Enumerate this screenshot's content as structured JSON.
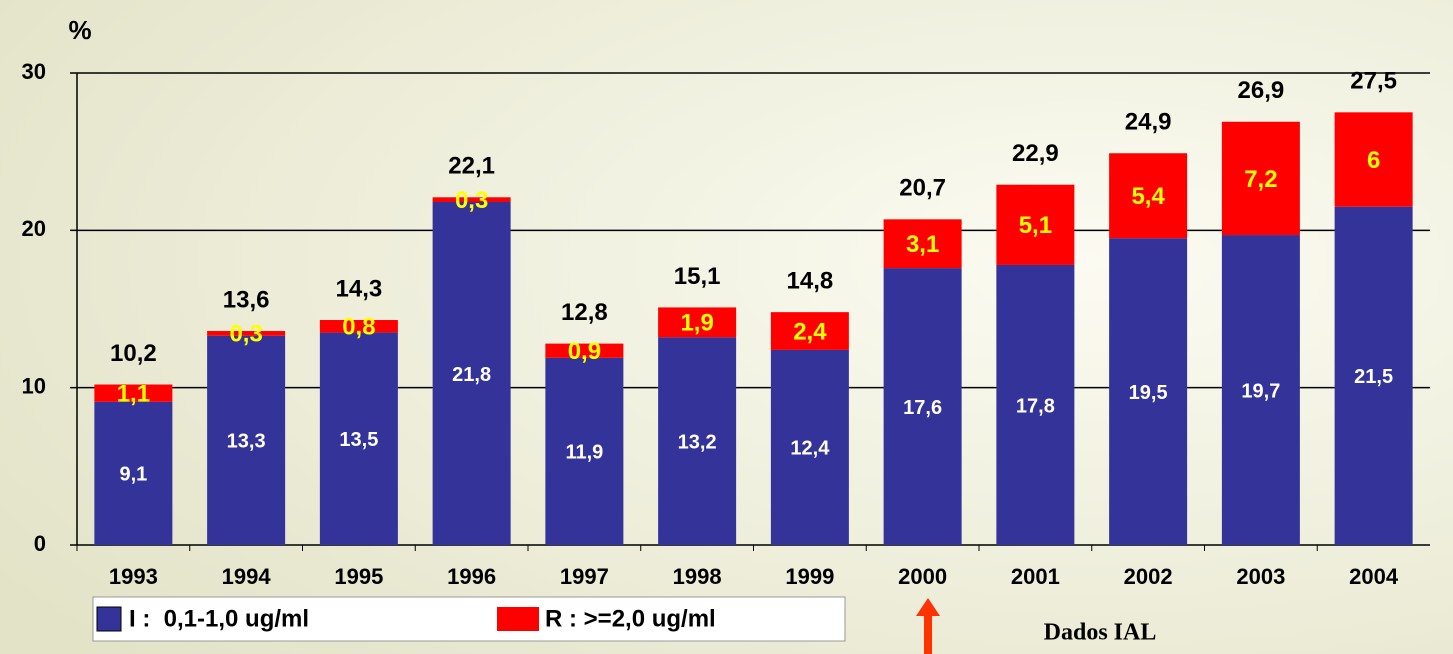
{
  "chart_data": {
    "type": "stacked-bar",
    "y_label": "%",
    "annotation": "Dados IAL",
    "categories": [
      "1993",
      "1994",
      "1995",
      "1996",
      "1997",
      "1998",
      "1999",
      "2000",
      "2001",
      "2002",
      "2003",
      "2004"
    ],
    "series": [
      {
        "name": "I :  0,1-1,0 ug/ml",
        "color": "#333399",
        "label_color": "#ffffff",
        "values": [
          9.1,
          13.3,
          13.5,
          21.8,
          11.9,
          13.2,
          12.4,
          17.6,
          17.8,
          19.5,
          19.7,
          21.5
        ],
        "value_labels": [
          "9,1",
          "13,3",
          "13,5",
          "21,8",
          "11,9",
          "13,2",
          "12,4",
          "17,6",
          "17,8",
          "19,5",
          "19,7",
          "21,5"
        ]
      },
      {
        "name": "R : >=2,0 ug/ml",
        "color": "#ff0000",
        "label_color": "#ffff00",
        "values": [
          1.1,
          0.3,
          0.8,
          0.3,
          0.9,
          1.9,
          2.4,
          3.1,
          5.1,
          5.4,
          7.2,
          6
        ],
        "value_labels": [
          "1,1",
          "0,3",
          "0,8",
          "0,3",
          "0,9",
          "1,9",
          "2,4",
          "3,1",
          "5,1",
          "5,4",
          "7,2",
          "6"
        ]
      }
    ],
    "totals": {
      "values": [
        10.2,
        13.6,
        14.3,
        22.1,
        12.8,
        15.1,
        14.8,
        20.7,
        22.9,
        24.9,
        26.9,
        27.5
      ],
      "value_labels": [
        "10,2",
        "13,6",
        "14,3",
        "22,1",
        "12,8",
        "15,1",
        "14,8",
        "20,7",
        "22,9",
        "24,9",
        "26,9",
        "27,5"
      ]
    },
    "ylim": [
      0,
      30
    ],
    "yticks": [
      0,
      10,
      20,
      30
    ],
    "grid": true
  }
}
